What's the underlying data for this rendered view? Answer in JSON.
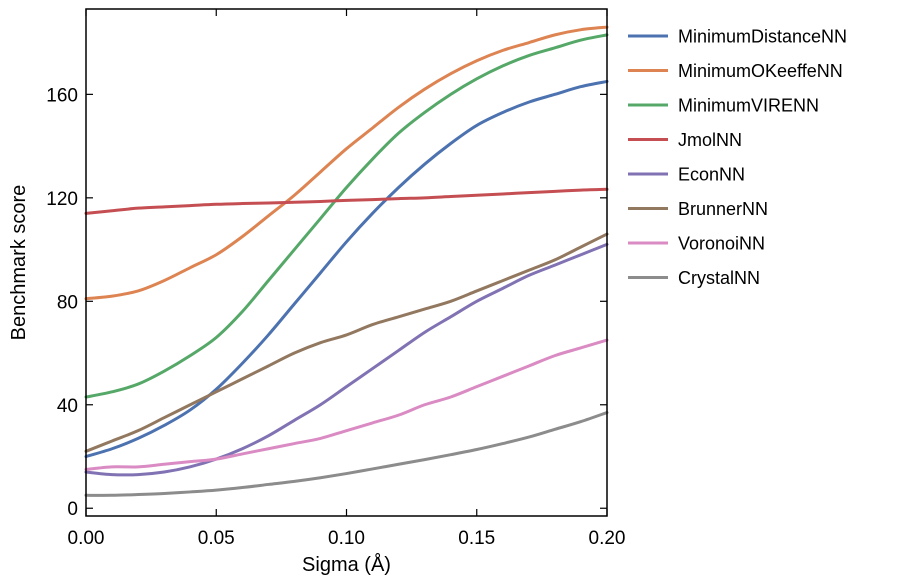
{
  "chart_data": {
    "type": "line",
    "title": "",
    "xlabel": "Sigma (Å)",
    "ylabel": "Benchmark score",
    "xlim": [
      0.0,
      0.2
    ],
    "ylim": [
      -3,
      193
    ],
    "xticks": [
      0.0,
      0.05,
      0.1,
      0.15,
      0.2
    ],
    "xtick_labels": [
      "0.00",
      "0.05",
      "0.10",
      "0.15",
      "0.20"
    ],
    "yticks": [
      0,
      40,
      80,
      120,
      160
    ],
    "ytick_labels": [
      "0",
      "40",
      "80",
      "120",
      "160"
    ],
    "grid": false,
    "legend_position": "outside-right",
    "x": [
      0.0,
      0.01,
      0.02,
      0.03,
      0.04,
      0.05,
      0.06,
      0.07,
      0.08,
      0.09,
      0.1,
      0.11,
      0.12,
      0.13,
      0.14,
      0.15,
      0.16,
      0.17,
      0.18,
      0.19,
      0.2
    ],
    "series": [
      {
        "name": "MinimumDistanceNN",
        "color": "#4c72b0",
        "values": [
          20,
          23,
          27,
          32,
          38,
          46,
          56,
          67,
          79,
          91,
          103,
          114,
          124,
          133,
          141,
          148,
          153,
          157,
          160,
          163,
          165
        ]
      },
      {
        "name": "MinimumOKeeffeNN",
        "color": "#dd8452",
        "values": [
          81,
          82,
          84,
          88,
          93,
          98,
          105,
          113,
          121,
          130,
          139,
          147,
          155,
          162,
          168,
          173,
          177,
          180,
          183,
          185,
          186
        ]
      },
      {
        "name": "MinimumVIRENN",
        "color": "#55a868",
        "values": [
          43,
          45,
          48,
          53,
          59,
          66,
          76,
          88,
          100,
          112,
          124,
          135,
          145,
          153,
          160,
          166,
          171,
          175,
          178,
          181,
          183
        ]
      },
      {
        "name": "JmolNN",
        "color": "#c44e52",
        "values": [
          114,
          115,
          116,
          116.5,
          117,
          117.5,
          117.8,
          118,
          118.3,
          118.6,
          119,
          119.3,
          119.7,
          120,
          120.5,
          121,
          121.5,
          122,
          122.5,
          123,
          123.3
        ]
      },
      {
        "name": "EconNN",
        "color": "#8172b3",
        "values": [
          14,
          13,
          13,
          14,
          16,
          19,
          23,
          28,
          34,
          40,
          47,
          54,
          61,
          68,
          74,
          80,
          85,
          90,
          94,
          98,
          102
        ]
      },
      {
        "name": "BrunnerNN",
        "color": "#937860",
        "values": [
          22,
          26,
          30,
          35,
          40,
          45,
          50,
          55,
          60,
          64,
          67,
          71,
          74,
          77,
          80,
          84,
          88,
          92,
          96,
          101,
          106
        ]
      },
      {
        "name": "VoronoiNN",
        "color": "#da8bc3",
        "values": [
          15,
          16,
          16,
          17,
          18,
          19,
          21,
          23,
          25,
          27,
          30,
          33,
          36,
          40,
          43,
          47,
          51,
          55,
          59,
          62,
          65
        ]
      },
      {
        "name": "CrystalNN",
        "color": "#8c8c8c",
        "values": [
          5,
          5,
          5.3,
          5.7,
          6.3,
          7,
          8,
          9.2,
          10.4,
          11.8,
          13.4,
          15.2,
          17,
          18.8,
          20.7,
          22.7,
          25,
          27.5,
          30.5,
          33.5,
          37
        ]
      }
    ]
  }
}
